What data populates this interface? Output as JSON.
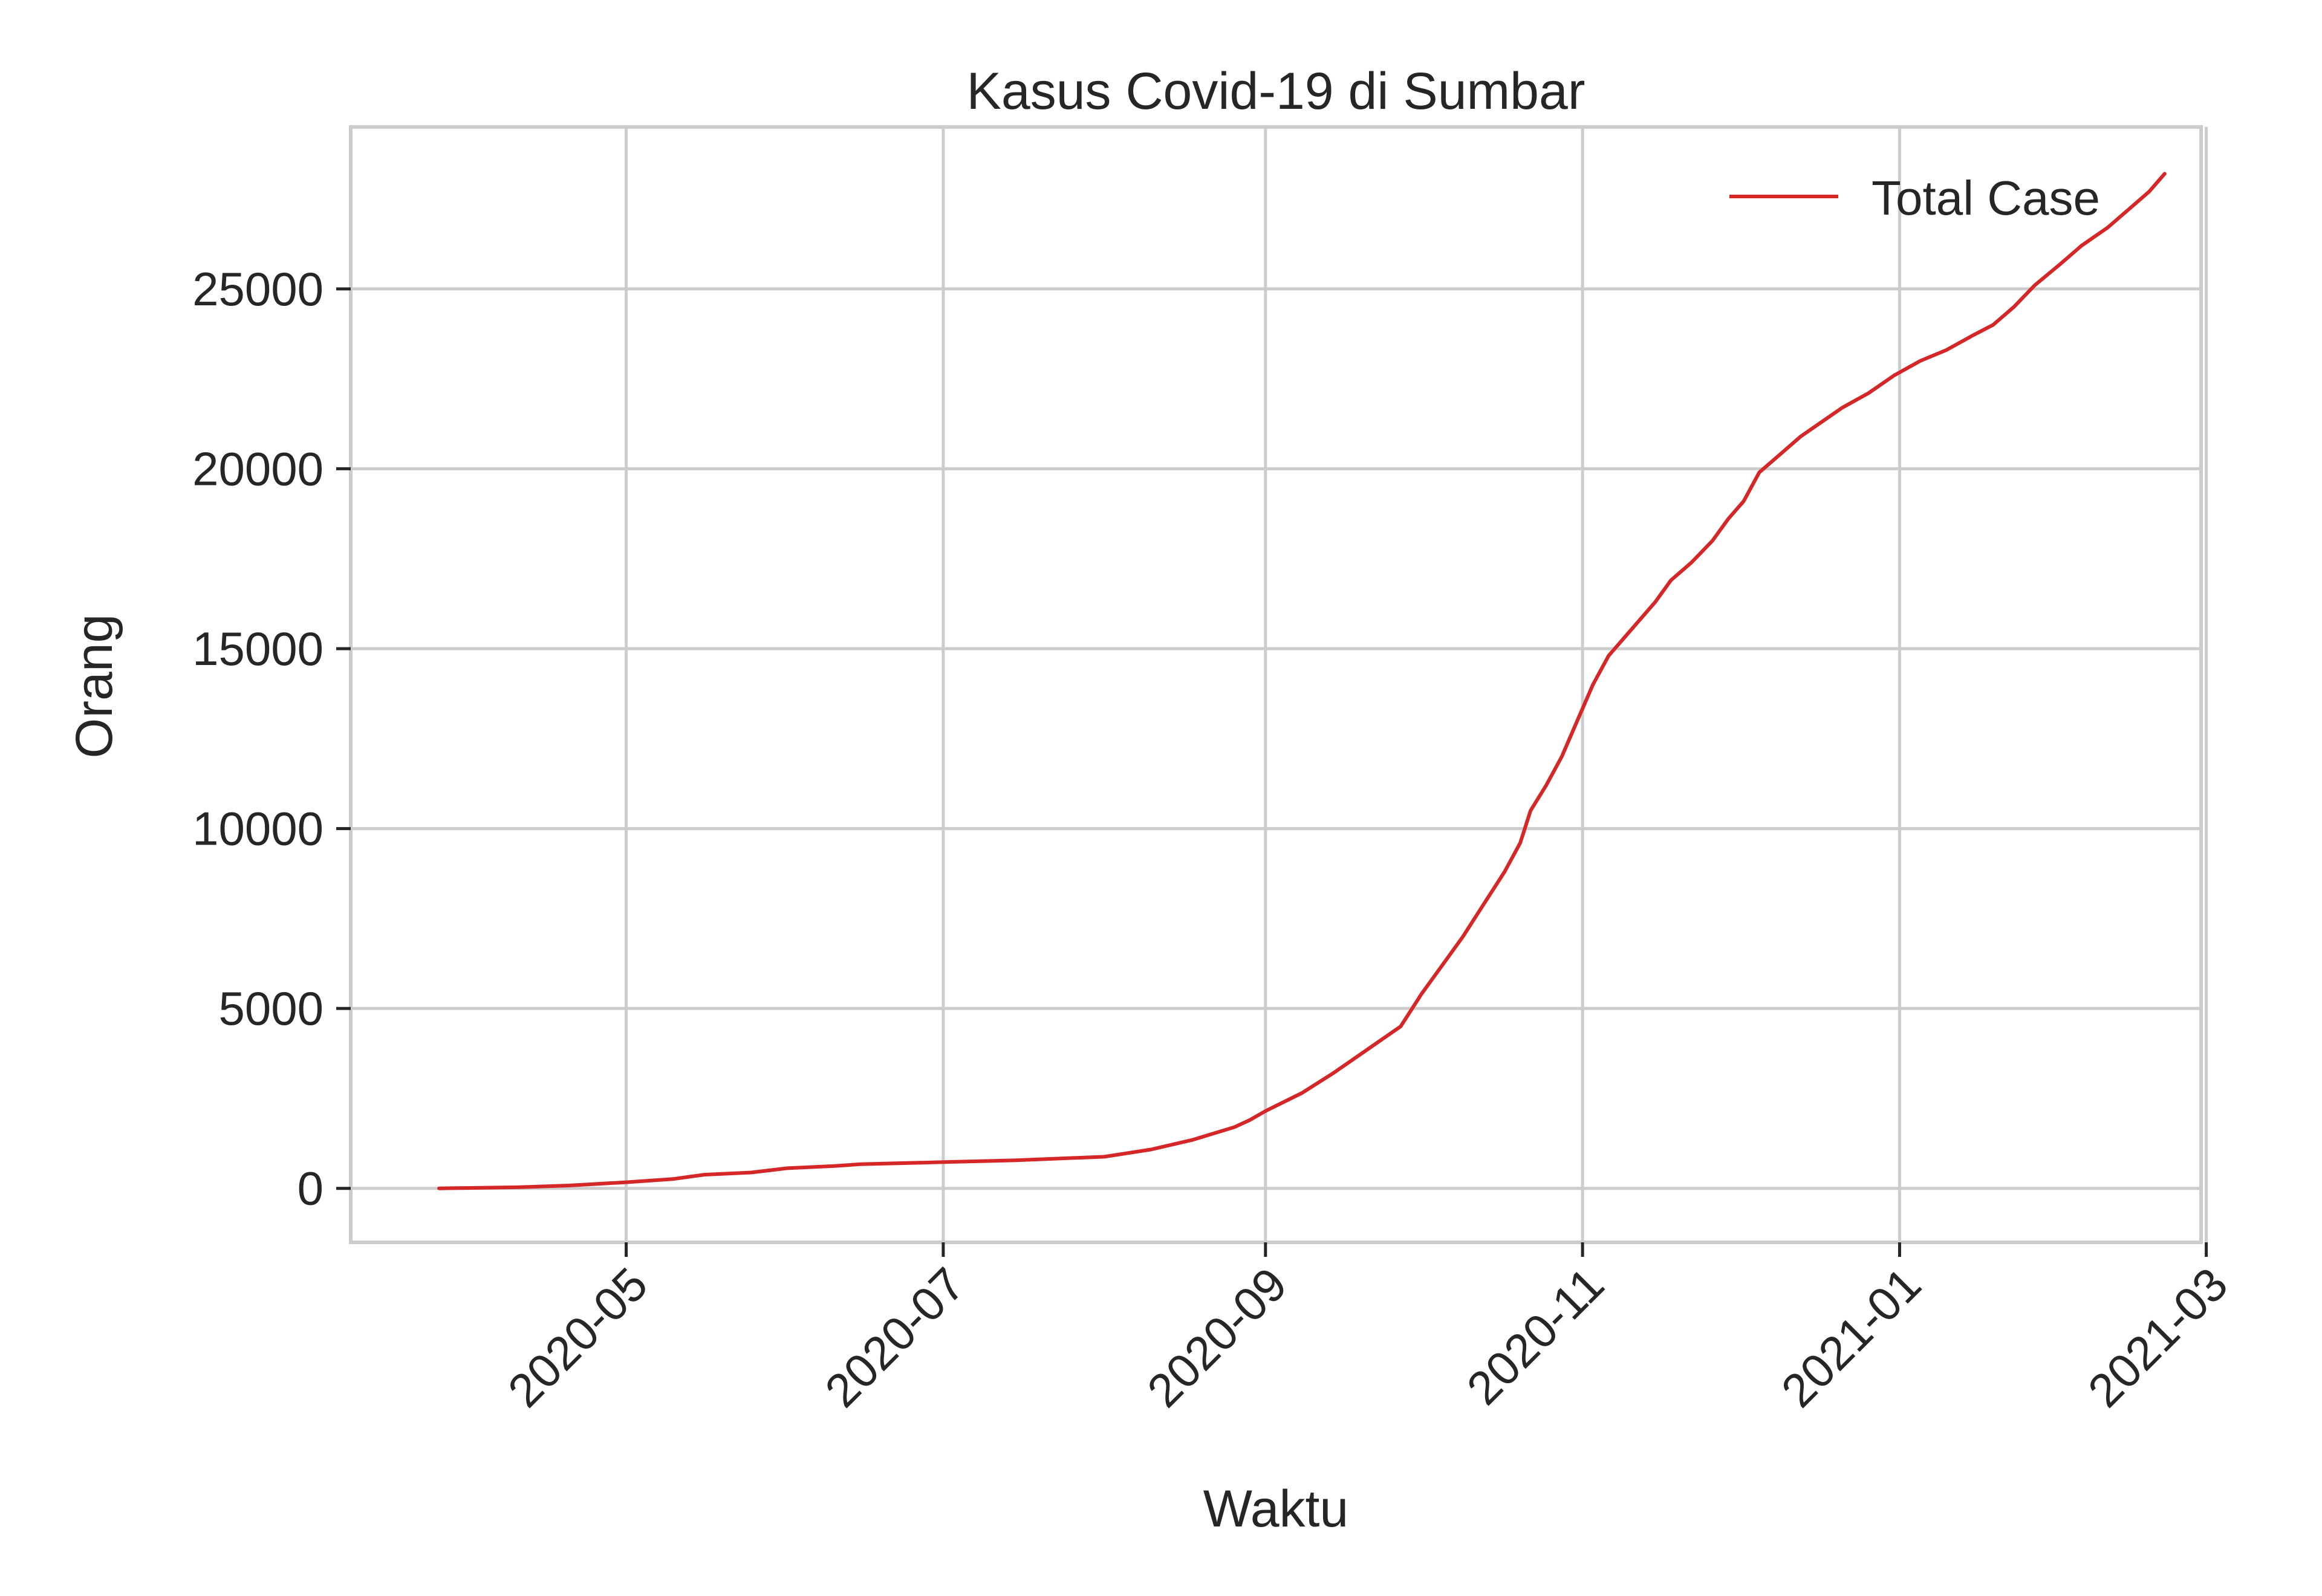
{
  "chart_data": {
    "type": "line",
    "title": "Kasus Covid-19 di Sumbar",
    "xlabel": "Waktu",
    "ylabel": "Orang",
    "xlim": [
      "2020-03-09",
      "2021-02-28"
    ],
    "ylim": [
      -1500,
      29500
    ],
    "grid": true,
    "legend_position": "top-right",
    "x_ticks": [
      "2020-05",
      "2020-07",
      "2020-09",
      "2020-11",
      "2021-01",
      "2021-03"
    ],
    "y_ticks": [
      0,
      5000,
      10000,
      15000,
      20000,
      25000
    ],
    "series": [
      {
        "name": "Total Case",
        "color": "#d62728",
        "points": [
          [
            "2020-03-26",
            0
          ],
          [
            "2020-04-10",
            30
          ],
          [
            "2020-04-20",
            80
          ],
          [
            "2020-05-01",
            170
          ],
          [
            "2020-05-10",
            260
          ],
          [
            "2020-05-16",
            380
          ],
          [
            "2020-05-25",
            440
          ],
          [
            "2020-06-01",
            560
          ],
          [
            "2020-06-10",
            620
          ],
          [
            "2020-06-15",
            670
          ],
          [
            "2020-07-01",
            730
          ],
          [
            "2020-07-15",
            780
          ],
          [
            "2020-08-01",
            880
          ],
          [
            "2020-08-10",
            1080
          ],
          [
            "2020-08-18",
            1350
          ],
          [
            "2020-08-26",
            1700
          ],
          [
            "2020-08-29",
            1900
          ],
          [
            "2020-09-01",
            2150
          ],
          [
            "2020-09-08",
            2650
          ],
          [
            "2020-09-14",
            3200
          ],
          [
            "2020-09-20",
            3800
          ],
          [
            "2020-09-27",
            4500
          ],
          [
            "2020-10-01",
            5400
          ],
          [
            "2020-10-05",
            6200
          ],
          [
            "2020-10-09",
            7000
          ],
          [
            "2020-10-13",
            7900
          ],
          [
            "2020-10-17",
            8800
          ],
          [
            "2020-10-20",
            9600
          ],
          [
            "2020-10-22",
            10500
          ],
          [
            "2020-10-25",
            11200
          ],
          [
            "2020-10-28",
            12000
          ],
          [
            "2020-10-31",
            13000
          ],
          [
            "2020-11-03",
            14000
          ],
          [
            "2020-11-06",
            14800
          ],
          [
            "2020-11-09",
            15300
          ],
          [
            "2020-11-12",
            15800
          ],
          [
            "2020-11-15",
            16300
          ],
          [
            "2020-11-18",
            16900
          ],
          [
            "2020-11-22",
            17400
          ],
          [
            "2020-11-26",
            18000
          ],
          [
            "2020-11-29",
            18600
          ],
          [
            "2020-12-02",
            19100
          ],
          [
            "2020-12-05",
            19900
          ],
          [
            "2020-12-09",
            20400
          ],
          [
            "2020-12-13",
            20900
          ],
          [
            "2020-12-17",
            21300
          ],
          [
            "2020-12-21",
            21700
          ],
          [
            "2020-12-26",
            22100
          ],
          [
            "2020-12-31",
            22600
          ],
          [
            "2021-01-05",
            23000
          ],
          [
            "2021-01-10",
            23300
          ],
          [
            "2021-01-15",
            23700
          ],
          [
            "2021-01-19",
            24000
          ],
          [
            "2021-01-23",
            24500
          ],
          [
            "2021-01-27",
            25100
          ],
          [
            "2021-02-01",
            25700
          ],
          [
            "2021-02-05",
            26200
          ],
          [
            "2021-02-10",
            26700
          ],
          [
            "2021-02-14",
            27200
          ],
          [
            "2021-02-18",
            27700
          ],
          [
            "2021-02-21",
            28200
          ]
        ]
      }
    ]
  }
}
